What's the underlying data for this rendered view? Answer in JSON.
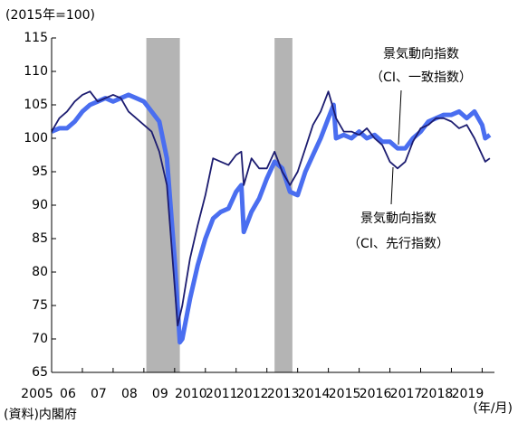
{
  "chart_data": {
    "type": "line",
    "y_unit_label": "(2015年=100)",
    "x_axis_label": "(年/月)",
    "source": "(資料)内閣府",
    "annotations": [
      {
        "lines": [
          "景気動向指数",
          "（CI、一致指数）"
        ]
      },
      {
        "lines": [
          "景気動向指数",
          "（CI、先行指数）"
        ]
      }
    ],
    "xlim": [
      2005,
      2019.4
    ],
    "xticks": [
      {
        "value": 2005,
        "label": "2005"
      },
      {
        "value": 2006,
        "label": "06"
      },
      {
        "value": 2007,
        "label": "07"
      },
      {
        "value": 2008,
        "label": "08"
      },
      {
        "value": 2009,
        "label": "09"
      },
      2010,
      2011,
      2012,
      2013,
      2014,
      2015,
      2016,
      2017,
      2018,
      2019
    ],
    "ylim": [
      65,
      115
    ],
    "yticks": [
      65,
      70,
      75,
      80,
      85,
      90,
      95,
      100,
      105,
      110,
      115
    ],
    "shaded_periods": [
      [
        2008.08,
        2009.17
      ],
      [
        2012.25,
        2012.83
      ]
    ],
    "shade_color": "#b4b4b4",
    "series": [
      {
        "name": "景気動向指数（CI、一致指数）",
        "color": "#4a6ef0",
        "x": [
          2005.0,
          2005.25,
          2005.5,
          2005.75,
          2006.0,
          2006.25,
          2006.5,
          2006.75,
          2007.0,
          2007.25,
          2007.5,
          2007.75,
          2008.0,
          2008.25,
          2008.5,
          2008.75,
          2009.0,
          2009.17,
          2009.25,
          2009.5,
          2009.75,
          2010.0,
          2010.25,
          2010.5,
          2010.75,
          2011.0,
          2011.17,
          2011.25,
          2011.5,
          2011.75,
          2012.0,
          2012.25,
          2012.5,
          2012.75,
          2013.0,
          2013.25,
          2013.5,
          2013.75,
          2014.0,
          2014.17,
          2014.25,
          2014.5,
          2014.75,
          2015.0,
          2015.25,
          2015.5,
          2015.75,
          2016.0,
          2016.25,
          2016.5,
          2016.75,
          2017.0,
          2017.25,
          2017.5,
          2017.75,
          2018.0,
          2018.25,
          2018.5,
          2018.75,
          2019.0,
          2019.1,
          2019.25
        ],
        "values": [
          101,
          101.5,
          101.5,
          102.5,
          104,
          105,
          105.5,
          106,
          105.5,
          106,
          106.5,
          106,
          105.5,
          104,
          102.5,
          97,
          82,
          69.5,
          70,
          76,
          81,
          85,
          88,
          89,
          89.5,
          92,
          93,
          86,
          89,
          91,
          94,
          96.5,
          95.5,
          92,
          91.5,
          95,
          97.5,
          100,
          103,
          105,
          100,
          100.5,
          100,
          101,
          100,
          100.5,
          99.5,
          99.5,
          98.5,
          98.5,
          100,
          101,
          102.5,
          103,
          103.5,
          103.5,
          104,
          103,
          104,
          102,
          100,
          100.5
        ]
      },
      {
        "name": "景気動向指数（CI、先行指数）",
        "color": "#1c1c70",
        "x": [
          2005.0,
          2005.25,
          2005.5,
          2005.75,
          2006.0,
          2006.25,
          2006.5,
          2006.75,
          2007.0,
          2007.25,
          2007.5,
          2007.75,
          2008.0,
          2008.25,
          2008.5,
          2008.75,
          2009.0,
          2009.1,
          2009.25,
          2009.5,
          2009.75,
          2010.0,
          2010.25,
          2010.5,
          2010.75,
          2011.0,
          2011.17,
          2011.25,
          2011.5,
          2011.75,
          2012.0,
          2012.25,
          2012.5,
          2012.75,
          2013.0,
          2013.25,
          2013.5,
          2013.75,
          2014.0,
          2014.25,
          2014.5,
          2014.75,
          2015.0,
          2015.25,
          2015.5,
          2015.75,
          2016.0,
          2016.25,
          2016.5,
          2016.75,
          2017.0,
          2017.25,
          2017.5,
          2017.75,
          2018.0,
          2018.25,
          2018.5,
          2018.75,
          2019.0,
          2019.1,
          2019.25
        ],
        "values": [
          101,
          103,
          104,
          105.5,
          106.5,
          107,
          105.5,
          106,
          106.5,
          106,
          104,
          103,
          102,
          101,
          98,
          93,
          78,
          72,
          75,
          82,
          87,
          91.5,
          97,
          96.5,
          96,
          97.5,
          98,
          93,
          97,
          95.5,
          95.5,
          98,
          95,
          93,
          95,
          98.5,
          102,
          104,
          107,
          103,
          101,
          101,
          100.5,
          101.5,
          100,
          99,
          96.5,
          95.5,
          96.5,
          99.5,
          101.5,
          102,
          103,
          103,
          102.5,
          101.5,
          102,
          100,
          97.5,
          96.5,
          97
        ]
      }
    ]
  }
}
